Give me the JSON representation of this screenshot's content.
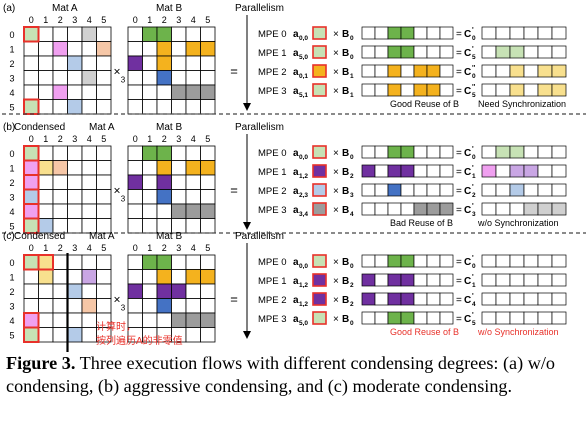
{
  "colors": {
    "green": "#6db34b",
    "purple": "#7030a0",
    "orange": "#f4b21e",
    "grey": "#9c9c9c",
    "blue": "#4472c4",
    "darkorange": "#e07a30",
    "pink": "#f0a0f0",
    "lightgreen": "#c7e2b5",
    "lightblue": "#b4cbe8",
    "lightgrey": "#d0d0d0",
    "peach": "#f6c7a7",
    "lightyellow": "#f8e08e",
    "lightpurple": "#c9a6e4",
    "red": "#e8312a",
    "dash": "#444444"
  },
  "panels": [
    {
      "tag": "(a)",
      "mat_a_title": "Mat A",
      "mat_a_sub": "",
      "mat_b_title": "Mat B",
      "parallelism": "Parallelism",
      "col_labels": [
        "0",
        "1",
        "2",
        "3",
        "4",
        "5"
      ],
      "row_labels": [
        "0",
        "1",
        "2",
        "3",
        "4",
        "5"
      ],
      "times": "×",
      "equals": "=",
      "mat_a": [
        [
          "lightgreen",
          "",
          "",
          "",
          "lightgrey",
          ""
        ],
        [
          "",
          "",
          "pink",
          "",
          "",
          "peach"
        ],
        [
          "",
          "",
          "",
          "lightblue",
          "",
          ""
        ],
        [
          "",
          "",
          "",
          "",
          "lightgrey",
          ""
        ],
        [
          "",
          "",
          "pink",
          "",
          "",
          ""
        ],
        [
          "lightgreen",
          "",
          "",
          "lightblue",
          "",
          ""
        ]
      ],
      "mat_a_red": [
        [
          0,
          0
        ],
        [
          5,
          0
        ]
      ],
      "mat_b": [
        [
          "",
          "green",
          "green",
          "",
          "",
          ""
        ],
        [
          "",
          "",
          "orange",
          "",
          "orange",
          "orange"
        ],
        [
          "purple",
          "",
          "orange",
          "",
          "",
          ""
        ],
        [
          "",
          "",
          "blue",
          "",
          "",
          ""
        ],
        [
          "",
          "",
          "",
          "grey",
          "grey",
          "grey"
        ],
        [
          "",
          "",
          "",
          "",
          "",
          ""
        ]
      ],
      "mpe": [
        {
          "label": "MPE 0",
          "a_base": "a",
          "a_sub": "0,0",
          "a_fill": "lightgreen",
          "b_base": "B",
          "b_sub": "0",
          "cells": [
            "",
            "",
            "green",
            "green",
            "",
            "",
            ""
          ],
          "c_base": "C",
          "c_sub": "0",
          "c_sup": "'",
          "res": [
            "",
            "",
            "",
            "",
            "",
            ""
          ]
        },
        {
          "label": "MPE 1",
          "a_base": "a",
          "a_sub": "5,0",
          "a_fill": "lightgreen",
          "b_base": "B",
          "b_sub": "0",
          "cells": [
            "",
            "",
            "green",
            "green",
            "",
            "",
            ""
          ],
          "c_base": "C",
          "c_sub": "5",
          "c_sup": "'",
          "res": [
            "",
            "lightgreen",
            "lightgreen",
            "",
            "",
            ""
          ]
        },
        {
          "label": "MPE 2",
          "a_base": "a",
          "a_sub": "0,1",
          "a_fill": "orange",
          "b_base": "B",
          "b_sub": "1",
          "cells": [
            "",
            "",
            "orange",
            "",
            "orange",
            "orange",
            ""
          ],
          "c_base": "C",
          "c_sub": "0",
          "c_sup": "''",
          "res": [
            "",
            "",
            "lightyellow",
            "",
            "lightyellow",
            "lightyellow"
          ]
        },
        {
          "label": "MPE 3",
          "a_base": "a",
          "a_sub": "5,1",
          "a_fill": "lightgreen",
          "b_base": "B",
          "b_sub": "1",
          "cells": [
            "",
            "",
            "orange",
            "",
            "orange",
            "orange",
            ""
          ],
          "c_base": "C",
          "c_sub": "5",
          "c_sup": "''",
          "res": [
            "",
            "",
            "lightyellow",
            "",
            "lightyellow",
            "lightyellow"
          ]
        }
      ],
      "note_left": "Good Reuse of B",
      "note_right": "Need Synchronization",
      "note_left_red": false,
      "note_right_red": false,
      "annotation": "",
      "annotation2": ""
    },
    {
      "tag": "(b)",
      "mat_a_title": "Mat A",
      "mat_a_sub": "Condensed",
      "mat_b_title": "Mat B",
      "parallelism": "Parallelism",
      "col_labels": [
        "0",
        "1",
        "2",
        "3",
        "4",
        "5"
      ],
      "row_labels": [
        "0",
        "1",
        "2",
        "3",
        "4",
        "5"
      ],
      "times": "×",
      "equals": "=",
      "mat_a": [
        [
          "lightgreen",
          "",
          "",
          "",
          "",
          ""
        ],
        [
          "pink",
          "lightyellow",
          "peach",
          "",
          "",
          ""
        ],
        [
          "pink",
          "",
          "",
          "",
          "",
          ""
        ],
        [
          "lightblue",
          "",
          "",
          "",
          "",
          ""
        ],
        [
          "pink",
          "",
          "",
          "",
          "",
          ""
        ],
        [
          "lightgreen",
          "lightblue",
          "",
          "",
          "",
          ""
        ]
      ],
      "mat_a_red": [
        [
          0,
          0
        ],
        [
          1,
          0
        ],
        [
          2,
          0
        ],
        [
          3,
          0
        ],
        [
          4,
          0
        ],
        [
          5,
          0
        ]
      ],
      "mat_b": [
        [
          "",
          "green",
          "green",
          "",
          "",
          ""
        ],
        [
          "",
          "",
          "orange",
          "",
          "orange",
          "orange"
        ],
        [
          "purple",
          "",
          "purple",
          "",
          "",
          ""
        ],
        [
          "",
          "",
          "blue",
          "",
          "",
          ""
        ],
        [
          "",
          "",
          "",
          "grey",
          "grey",
          "grey"
        ],
        [
          "",
          "",
          "",
          "",
          "",
          ""
        ]
      ],
      "mpe": [
        {
          "label": "MPE 0",
          "a_base": "a",
          "a_sub": "0,0",
          "a_fill": "lightgreen",
          "b_base": "B",
          "b_sub": "0",
          "cells": [
            "",
            "",
            "green",
            "green",
            "",
            "",
            ""
          ],
          "c_base": "C",
          "c_sub": "0",
          "c_sup": "'",
          "res": [
            "",
            "lightgreen",
            "lightgreen",
            "",
            "",
            ""
          ]
        },
        {
          "label": "MPE 1",
          "a_base": "a",
          "a_sub": "1,2",
          "a_fill": "purple",
          "b_base": "B",
          "b_sub": "2",
          "cells": [
            "purple",
            "",
            "purple",
            "purple",
            "",
            "",
            ""
          ],
          "c_base": "C",
          "c_sub": "1",
          "c_sup": "'",
          "res": [
            "pink",
            "",
            "lightpurple",
            "lightpurple",
            "",
            ""
          ]
        },
        {
          "label": "MPE 2",
          "a_base": "a",
          "a_sub": "2,3",
          "a_fill": "lightblue",
          "b_base": "B",
          "b_sub": "3",
          "cells": [
            "",
            "",
            "blue",
            "",
            "",
            "",
            ""
          ],
          "c_base": "C",
          "c_sub": "2",
          "c_sup": "'",
          "res": [
            "",
            "",
            "lightblue",
            "",
            "",
            ""
          ]
        },
        {
          "label": "MPE 3",
          "a_base": "a",
          "a_sub": "3,4",
          "a_fill": "grey",
          "b_base": "B",
          "b_sub": "4",
          "cells": [
            "",
            "",
            "",
            "",
            "grey",
            "grey",
            "grey"
          ],
          "c_base": "C",
          "c_sub": "3",
          "c_sup": "'",
          "res": [
            "",
            "",
            "",
            "lightgrey",
            "lightgrey",
            "lightgrey"
          ]
        }
      ],
      "note_left": "Bad Reuse of B",
      "note_right": "w/o Synchronization",
      "note_left_red": false,
      "note_right_red": false,
      "annotation": "",
      "annotation2": ""
    },
    {
      "tag": "(c)",
      "mat_a_title": "Mat A",
      "mat_a_sub": "Condensed",
      "mat_b_title": "Mat B",
      "parallelism": "Parallelism",
      "col_labels": [
        "0",
        "1",
        "2",
        "3",
        "4",
        "5"
      ],
      "row_labels": [
        "0",
        "1",
        "2",
        "3",
        "4",
        "5"
      ],
      "times": "×",
      "equals": "=",
      "mat_a": [
        [
          "lightgreen",
          "lightyellow",
          "",
          "",
          "",
          ""
        ],
        [
          "",
          "lightyellow",
          "",
          "",
          "lightpurple",
          ""
        ],
        [
          "",
          "",
          "",
          "lightblue",
          "",
          ""
        ],
        [
          "",
          "",
          "",
          "",
          "peach",
          ""
        ],
        [
          "pink",
          "",
          "",
          "",
          "",
          ""
        ],
        [
          "lightgreen",
          "",
          "",
          "lightblue",
          "",
          ""
        ]
      ],
      "mat_a_red": [
        [
          0,
          0
        ],
        [
          0,
          1
        ],
        [
          4,
          0
        ],
        [
          5,
          0
        ]
      ],
      "mat_b": [
        [
          "",
          "green",
          "green",
          "",
          "",
          ""
        ],
        [
          "",
          "",
          "orange",
          "",
          "orange",
          "orange"
        ],
        [
          "purple",
          "",
          "purple",
          "purple",
          "",
          ""
        ],
        [
          "",
          "",
          "blue",
          "",
          "",
          ""
        ],
        [
          "",
          "",
          "",
          "grey",
          "grey",
          "grey"
        ],
        [
          "",
          "",
          "",
          "",
          "",
          ""
        ]
      ],
      "mpe": [
        {
          "label": "MPE 0",
          "a_base": "a",
          "a_sub": "0,0",
          "a_fill": "lightgreen",
          "b_base": "B",
          "b_sub": "0",
          "cells": [
            "",
            "",
            "green",
            "green",
            "",
            "",
            ""
          ],
          "c_base": "C",
          "c_sub": "0",
          "c_sup": "'",
          "res": [
            "",
            "",
            "",
            "",
            "",
            ""
          ]
        },
        {
          "label": "MPE 1",
          "a_base": "a",
          "a_sub": "1,2",
          "a_fill": "purple",
          "b_base": "B",
          "b_sub": "2",
          "cells": [
            "purple",
            "",
            "purple",
            "purple",
            "",
            "",
            ""
          ],
          "c_base": "C",
          "c_sub": "1",
          "c_sup": "'",
          "res": [
            "",
            "",
            "",
            "",
            "",
            ""
          ]
        },
        {
          "label": "MPE 2",
          "a_base": "a",
          "a_sub": "1,2",
          "a_fill": "purple",
          "b_base": "B",
          "b_sub": "2",
          "cells": [
            "purple",
            "",
            "purple",
            "purple",
            "",
            "",
            ""
          ],
          "c_base": "C",
          "c_sub": "4",
          "c_sup": "'",
          "res": [
            "",
            "",
            "",
            "",
            "",
            ""
          ]
        },
        {
          "label": "MPE 3",
          "a_base": "a",
          "a_sub": "5,0",
          "a_fill": "lightgreen",
          "b_base": "B",
          "b_sub": "0",
          "cells": [
            "",
            "",
            "green",
            "green",
            "",
            "",
            ""
          ],
          "c_base": "C",
          "c_sub": "5",
          "c_sup": "'",
          "res": [
            "",
            "",
            "",
            "",
            "",
            ""
          ]
        }
      ],
      "note_left": "Good Reuse of B",
      "note_right": "w/o Synchronization",
      "note_left_red": true,
      "note_right_red": true,
      "annotation": "计算时，",
      "annotation2": "按列遍历A的非零值"
    }
  ],
  "caption": {
    "label": "Figure 3.",
    "text": "Three execution flows with different condensing degrees: (a) w/o condensing, (b) aggressive condensing, and (c) moderate condensing."
  }
}
